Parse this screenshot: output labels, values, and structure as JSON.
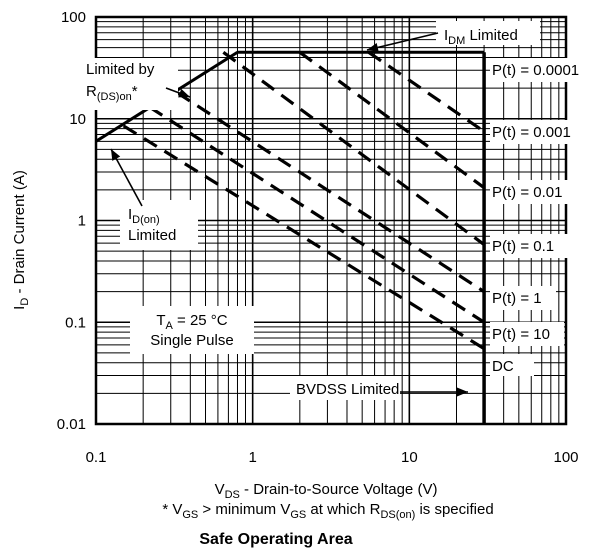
{
  "chart_data": {
    "type": "line",
    "title": "Safe Operating Area",
    "xlabel": "V_DS - Drain-to-Source Voltage (V)",
    "xlabel_main": "V",
    "xlabel_sub": "DS",
    "xlabel_rest": " - Drain-to-Source Voltage (V)",
    "ylabel": "I_D - Drain Current (A)",
    "ylabel_main": "I",
    "ylabel_sub": "D",
    "ylabel_rest": " - Drain Current (A)",
    "footnote": "* V_GS > minimum V_GS at which R_DS(on) is specified",
    "footnote_parts": [
      "* V",
      "GS",
      "  > minimum V",
      "GS",
      " at which R",
      "DS(on)",
      " is specified"
    ],
    "x_scale": "log",
    "y_scale": "log",
    "xlim": [
      0.1,
      100
    ],
    "ylim": [
      0.01,
      100
    ],
    "x_ticks": [
      0.1,
      1,
      10,
      100
    ],
    "x_tick_labels": [
      "0.1",
      "1",
      "10",
      "100"
    ],
    "y_ticks": [
      0.01,
      0.1,
      1,
      10,
      100
    ],
    "y_tick_labels": [
      "0.01",
      "0.1",
      "1",
      "10",
      "100"
    ],
    "grid": true,
    "limits": {
      "idm_limited": 45,
      "idm_label_main": "I",
      "idm_label_sub": "DM",
      "idm_label_rest": " Limited",
      "bvdss_limited_v": 30,
      "bvdss_label": "BVDSS Limited",
      "rds_label_line1": "Limited by",
      "rds_label_main": "R",
      "rds_label_sub": "(DS)on",
      "rds_label_rest": "*",
      "idon_label_main": "I",
      "idon_label_sub": "D(on)",
      "idon_label_line2": "Limited"
    },
    "rds_line": {
      "x": [
        0.1,
        0.8
      ],
      "y": [
        6.0,
        45
      ]
    },
    "conditions": {
      "ta_main": "T",
      "ta_sub": "A",
      "ta_rest": " = 25 °C",
      "pulse": "Single Pulse"
    },
    "series": [
      {
        "name": "P(t) = 0.0001",
        "x": [
          0.8,
          30
        ],
        "y": [
          45,
          45
        ]
      },
      {
        "name": "P(t) = 0.001",
        "x": [
          5.5,
          30
        ],
        "y": [
          45,
          7.5
        ]
      },
      {
        "name": "P(t) = 0.01",
        "x": [
          2.0,
          30
        ],
        "y": [
          45,
          2.1
        ]
      },
      {
        "name": "P(t) = 0.1",
        "x": [
          0.65,
          30
        ],
        "y": [
          45,
          0.58
        ]
      },
      {
        "name": "P(t) = 1",
        "x": [
          0.33,
          30
        ],
        "y": [
          18,
          0.2
        ]
      },
      {
        "name": "P(t) = 10",
        "x": [
          0.22,
          30
        ],
        "y": [
          13,
          0.1
        ]
      },
      {
        "name": "DC",
        "x": [
          0.15,
          30
        ],
        "y": [
          8.5,
          0.055
        ]
      }
    ]
  }
}
